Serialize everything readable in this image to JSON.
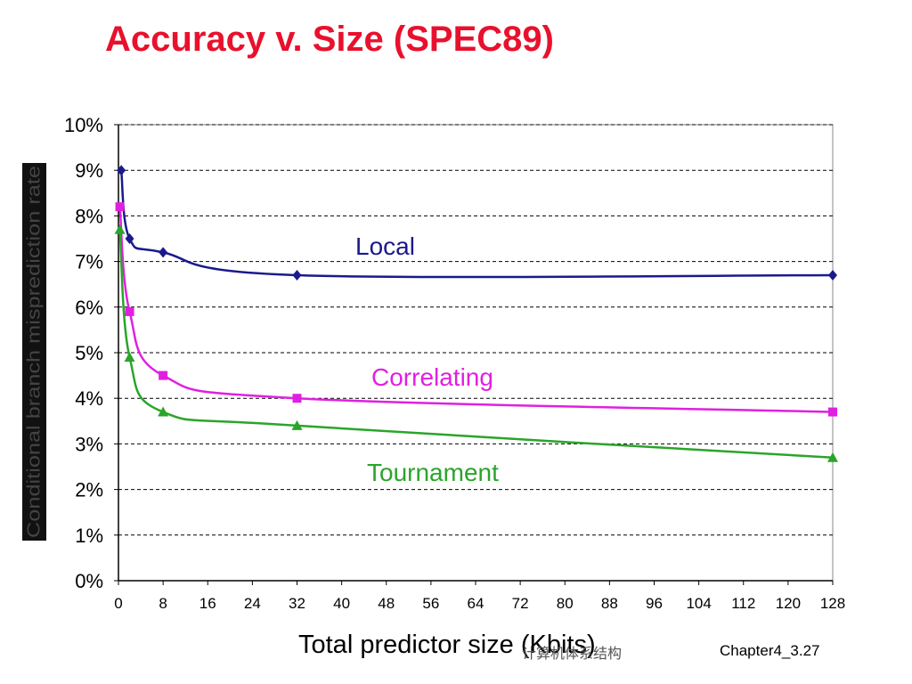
{
  "slide": {
    "title": "Accuracy v. Size (SPEC89)",
    "footer_left": "计算机体系结构",
    "footer_right": "Chapter4_3.27"
  },
  "colors": {
    "local": "#1a1a8c",
    "correlating": "#e020e0",
    "tournament": "#2aa52a",
    "title": "#e8112d",
    "grid": "#000000"
  },
  "chart_data": {
    "type": "line",
    "title": "",
    "xlabel": "Total predictor size (Kbits)",
    "ylabel": "Conditional branch misprediction rate",
    "xlim": [
      0,
      128
    ],
    "ylim": [
      0,
      10
    ],
    "x_ticks": [
      0,
      8,
      16,
      24,
      32,
      40,
      48,
      56,
      64,
      72,
      80,
      88,
      96,
      104,
      112,
      120,
      128
    ],
    "y_ticks": [
      0,
      1,
      2,
      3,
      4,
      5,
      6,
      7,
      8,
      9,
      10
    ],
    "y_tick_labels": [
      "0%",
      "1%",
      "2%",
      "3%",
      "4%",
      "5%",
      "6%",
      "7%",
      "8%",
      "9%",
      "10%"
    ],
    "grid": "horizontal dashed",
    "series": [
      {
        "name": "Local",
        "marker": "diamond",
        "color": "#1a1a8c",
        "points": [
          [
            0.5,
            9.0
          ],
          [
            2,
            7.5
          ],
          [
            8,
            7.2
          ],
          [
            32,
            6.7
          ],
          [
            128,
            6.7
          ]
        ]
      },
      {
        "name": "Correlating",
        "marker": "square",
        "color": "#e020e0",
        "points": [
          [
            0.25,
            8.2
          ],
          [
            2,
            5.9
          ],
          [
            8,
            4.5
          ],
          [
            32,
            4.0
          ],
          [
            128,
            3.7
          ]
        ]
      },
      {
        "name": "Tournament",
        "marker": "triangle",
        "color": "#2aa52a",
        "points": [
          [
            0.25,
            7.7
          ],
          [
            2,
            4.9
          ],
          [
            8,
            3.7
          ],
          [
            32,
            3.4
          ],
          [
            128,
            2.7
          ]
        ]
      }
    ]
  }
}
